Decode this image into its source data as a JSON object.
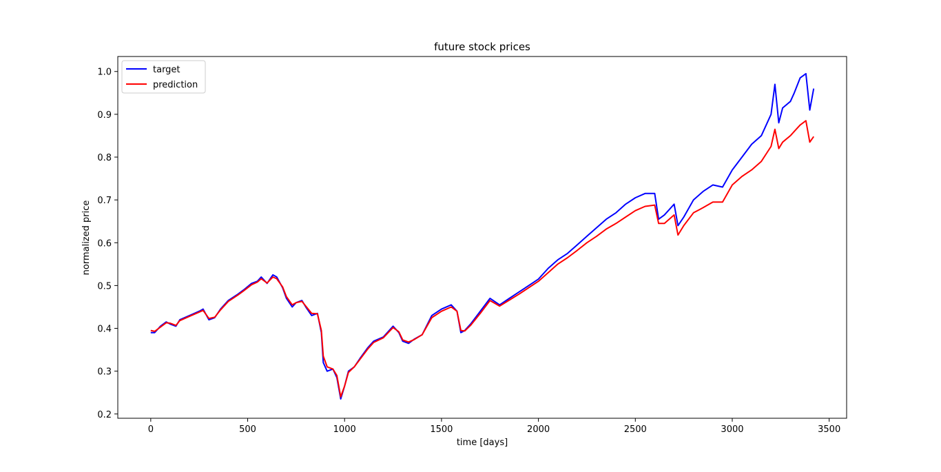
{
  "chart_data": {
    "type": "line",
    "title": "future stock prices",
    "xlabel": "time [days]",
    "ylabel": "normalized price",
    "xlim": [
      -170,
      3590
    ],
    "ylim": [
      0.19,
      1.035
    ],
    "xticks": [
      0,
      500,
      1000,
      1500,
      2000,
      2500,
      3000,
      3500
    ],
    "xtick_labels": [
      "0",
      "500",
      "1000",
      "1500",
      "2000",
      "2500",
      "3000",
      "3500"
    ],
    "yticks": [
      0.2,
      0.3,
      0.4,
      0.5,
      0.6,
      0.7,
      0.8,
      0.9,
      1.0
    ],
    "ytick_labels": [
      "0.2",
      "0.3",
      "0.4",
      "0.5",
      "0.6",
      "0.7",
      "0.8",
      "0.9",
      "1.0"
    ],
    "grid": false,
    "legend_position": "top-left",
    "series": [
      {
        "name": "target",
        "color": "#0000ff",
        "points": [
          [
            0,
            0.39
          ],
          [
            20,
            0.39
          ],
          [
            50,
            0.405
          ],
          [
            80,
            0.415
          ],
          [
            100,
            0.41
          ],
          [
            130,
            0.405
          ],
          [
            150,
            0.42
          ],
          [
            200,
            0.43
          ],
          [
            250,
            0.44
          ],
          [
            270,
            0.445
          ],
          [
            300,
            0.42
          ],
          [
            330,
            0.425
          ],
          [
            360,
            0.445
          ],
          [
            400,
            0.465
          ],
          [
            450,
            0.48
          ],
          [
            480,
            0.49
          ],
          [
            520,
            0.505
          ],
          [
            550,
            0.51
          ],
          [
            570,
            0.52
          ],
          [
            600,
            0.505
          ],
          [
            630,
            0.525
          ],
          [
            650,
            0.52
          ],
          [
            680,
            0.495
          ],
          [
            700,
            0.47
          ],
          [
            730,
            0.45
          ],
          [
            750,
            0.46
          ],
          [
            780,
            0.465
          ],
          [
            800,
            0.45
          ],
          [
            830,
            0.43
          ],
          [
            860,
            0.435
          ],
          [
            880,
            0.39
          ],
          [
            890,
            0.32
          ],
          [
            910,
            0.3
          ],
          [
            940,
            0.305
          ],
          [
            960,
            0.285
          ],
          [
            980,
            0.235
          ],
          [
            1000,
            0.265
          ],
          [
            1020,
            0.3
          ],
          [
            1050,
            0.31
          ],
          [
            1080,
            0.33
          ],
          [
            1120,
            0.355
          ],
          [
            1150,
            0.37
          ],
          [
            1200,
            0.38
          ],
          [
            1250,
            0.405
          ],
          [
            1280,
            0.39
          ],
          [
            1300,
            0.37
          ],
          [
            1330,
            0.365
          ],
          [
            1360,
            0.375
          ],
          [
            1400,
            0.385
          ],
          [
            1450,
            0.43
          ],
          [
            1500,
            0.445
          ],
          [
            1550,
            0.455
          ],
          [
            1580,
            0.44
          ],
          [
            1600,
            0.39
          ],
          [
            1620,
            0.395
          ],
          [
            1650,
            0.41
          ],
          [
            1700,
            0.44
          ],
          [
            1750,
            0.47
          ],
          [
            1800,
            0.455
          ],
          [
            1850,
            0.47
          ],
          [
            1900,
            0.485
          ],
          [
            1950,
            0.5
          ],
          [
            2000,
            0.515
          ],
          [
            2050,
            0.54
          ],
          [
            2100,
            0.56
          ],
          [
            2150,
            0.575
          ],
          [
            2200,
            0.595
          ],
          [
            2250,
            0.615
          ],
          [
            2300,
            0.635
          ],
          [
            2350,
            0.655
          ],
          [
            2400,
            0.67
          ],
          [
            2450,
            0.69
          ],
          [
            2500,
            0.705
          ],
          [
            2550,
            0.715
          ],
          [
            2600,
            0.715
          ],
          [
            2620,
            0.655
          ],
          [
            2650,
            0.665
          ],
          [
            2700,
            0.69
          ],
          [
            2720,
            0.64
          ],
          [
            2750,
            0.66
          ],
          [
            2800,
            0.7
          ],
          [
            2850,
            0.72
          ],
          [
            2900,
            0.735
          ],
          [
            2950,
            0.73
          ],
          [
            3000,
            0.77
          ],
          [
            3050,
            0.8
          ],
          [
            3100,
            0.83
          ],
          [
            3150,
            0.85
          ],
          [
            3200,
            0.9
          ],
          [
            3220,
            0.97
          ],
          [
            3240,
            0.88
          ],
          [
            3260,
            0.915
          ],
          [
            3300,
            0.93
          ],
          [
            3320,
            0.95
          ],
          [
            3350,
            0.985
          ],
          [
            3380,
            0.995
          ],
          [
            3400,
            0.91
          ],
          [
            3420,
            0.96
          ]
        ]
      },
      {
        "name": "prediction",
        "color": "#ff0000",
        "points": [
          [
            0,
            0.395
          ],
          [
            20,
            0.393
          ],
          [
            50,
            0.403
          ],
          [
            80,
            0.413
          ],
          [
            100,
            0.412
          ],
          [
            130,
            0.407
          ],
          [
            150,
            0.418
          ],
          [
            200,
            0.428
          ],
          [
            250,
            0.438
          ],
          [
            270,
            0.442
          ],
          [
            300,
            0.423
          ],
          [
            330,
            0.426
          ],
          [
            360,
            0.443
          ],
          [
            400,
            0.463
          ],
          [
            450,
            0.478
          ],
          [
            480,
            0.488
          ],
          [
            520,
            0.502
          ],
          [
            550,
            0.508
          ],
          [
            570,
            0.516
          ],
          [
            600,
            0.506
          ],
          [
            630,
            0.52
          ],
          [
            650,
            0.516
          ],
          [
            680,
            0.497
          ],
          [
            700,
            0.474
          ],
          [
            730,
            0.455
          ],
          [
            750,
            0.46
          ],
          [
            780,
            0.463
          ],
          [
            800,
            0.452
          ],
          [
            830,
            0.435
          ],
          [
            860,
            0.434
          ],
          [
            880,
            0.395
          ],
          [
            890,
            0.335
          ],
          [
            910,
            0.31
          ],
          [
            940,
            0.305
          ],
          [
            960,
            0.29
          ],
          [
            980,
            0.24
          ],
          [
            1000,
            0.265
          ],
          [
            1020,
            0.297
          ],
          [
            1050,
            0.31
          ],
          [
            1080,
            0.328
          ],
          [
            1120,
            0.352
          ],
          [
            1150,
            0.367
          ],
          [
            1200,
            0.378
          ],
          [
            1250,
            0.402
          ],
          [
            1280,
            0.392
          ],
          [
            1300,
            0.373
          ],
          [
            1330,
            0.368
          ],
          [
            1360,
            0.374
          ],
          [
            1400,
            0.385
          ],
          [
            1450,
            0.425
          ],
          [
            1500,
            0.44
          ],
          [
            1550,
            0.45
          ],
          [
            1580,
            0.44
          ],
          [
            1600,
            0.395
          ],
          [
            1620,
            0.394
          ],
          [
            1650,
            0.407
          ],
          [
            1700,
            0.435
          ],
          [
            1750,
            0.465
          ],
          [
            1800,
            0.452
          ],
          [
            1850,
            0.466
          ],
          [
            1900,
            0.48
          ],
          [
            1950,
            0.495
          ],
          [
            2000,
            0.51
          ],
          [
            2050,
            0.53
          ],
          [
            2100,
            0.55
          ],
          [
            2150,
            0.565
          ],
          [
            2200,
            0.582
          ],
          [
            2250,
            0.6
          ],
          [
            2300,
            0.615
          ],
          [
            2350,
            0.632
          ],
          [
            2400,
            0.645
          ],
          [
            2450,
            0.66
          ],
          [
            2500,
            0.675
          ],
          [
            2550,
            0.685
          ],
          [
            2600,
            0.688
          ],
          [
            2620,
            0.645
          ],
          [
            2650,
            0.645
          ],
          [
            2700,
            0.665
          ],
          [
            2720,
            0.618
          ],
          [
            2750,
            0.64
          ],
          [
            2800,
            0.67
          ],
          [
            2850,
            0.682
          ],
          [
            2900,
            0.695
          ],
          [
            2950,
            0.695
          ],
          [
            3000,
            0.735
          ],
          [
            3050,
            0.755
          ],
          [
            3100,
            0.77
          ],
          [
            3150,
            0.79
          ],
          [
            3200,
            0.825
          ],
          [
            3220,
            0.865
          ],
          [
            3240,
            0.82
          ],
          [
            3260,
            0.835
          ],
          [
            3300,
            0.85
          ],
          [
            3320,
            0.86
          ],
          [
            3350,
            0.875
          ],
          [
            3380,
            0.885
          ],
          [
            3400,
            0.835
          ],
          [
            3420,
            0.848
          ]
        ]
      }
    ]
  }
}
